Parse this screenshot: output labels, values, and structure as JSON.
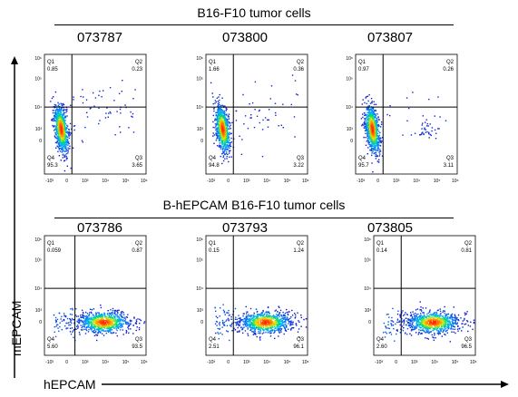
{
  "figure": {
    "y_axis_title": "mEPCAM",
    "x_axis_title": "hEPCAM"
  },
  "groups": [
    {
      "title": "B16-F10 tumor cells",
      "samples": [
        "073787",
        "073800",
        "073807"
      ]
    },
    {
      "title": "B-hEPCAM B16-F10 tumor cells",
      "samples": [
        "073786",
        "073793",
        "073805"
      ]
    }
  ],
  "chart_data": [
    {
      "type": "scatter",
      "title": "073787",
      "xscale": "biexponential",
      "yscale": "biexponential",
      "population": "wild-type",
      "gate_x": 0.27,
      "gate_y": 0.44,
      "quadrants": {
        "Q1": "0.85",
        "Q2": "0.23",
        "Q3": "3.65",
        "Q4": "95.3"
      }
    },
    {
      "type": "scatter",
      "title": "073800",
      "xscale": "biexponential",
      "yscale": "biexponential",
      "population": "wild-type",
      "gate_x": 0.27,
      "gate_y": 0.44,
      "quadrants": {
        "Q1": "1.66",
        "Q2": "0.36",
        "Q3": "3.22",
        "Q4": "94.8"
      }
    },
    {
      "type": "scatter",
      "title": "073807",
      "xscale": "biexponential",
      "yscale": "biexponential",
      "population": "wild-type",
      "gate_x": 0.27,
      "gate_y": 0.44,
      "quadrants": {
        "Q1": "0.97",
        "Q2": "0.26",
        "Q3": "3.11",
        "Q4": "95.7"
      }
    },
    {
      "type": "scatter",
      "title": "073786",
      "xscale": "biexponential",
      "yscale": "biexponential",
      "population": "humanized",
      "gate_x": 0.3,
      "gate_y": 0.44,
      "quadrants": {
        "Q1": "0.059",
        "Q2": "0.87",
        "Q3": "93.5",
        "Q4": "5.60"
      }
    },
    {
      "type": "scatter",
      "title": "073793",
      "xscale": "biexponential",
      "yscale": "biexponential",
      "population": "humanized",
      "gate_x": 0.27,
      "gate_y": 0.44,
      "quadrants": {
        "Q1": "0.15",
        "Q2": "1.24",
        "Q3": "96.1",
        "Q4": "2.51"
      }
    },
    {
      "type": "scatter",
      "title": "073805",
      "xscale": "biexponential",
      "yscale": "biexponential",
      "population": "humanized",
      "gate_x": 0.27,
      "gate_y": 0.44,
      "quadrants": {
        "Q1": "0.14",
        "Q2": "0.81",
        "Q3": "96.5",
        "Q4": "2.60"
      }
    }
  ],
  "axis_ticks": {
    "y": [
      "10⁶",
      "10⁵",
      "10⁴",
      "10³",
      "0"
    ],
    "x": [
      "-10³",
      "0",
      "10³",
      "10⁴",
      "10⁵",
      "10⁶"
    ]
  },
  "colors": {
    "axes": "#000000",
    "density_low": "#1010d0",
    "density_high": "#ff2000"
  }
}
